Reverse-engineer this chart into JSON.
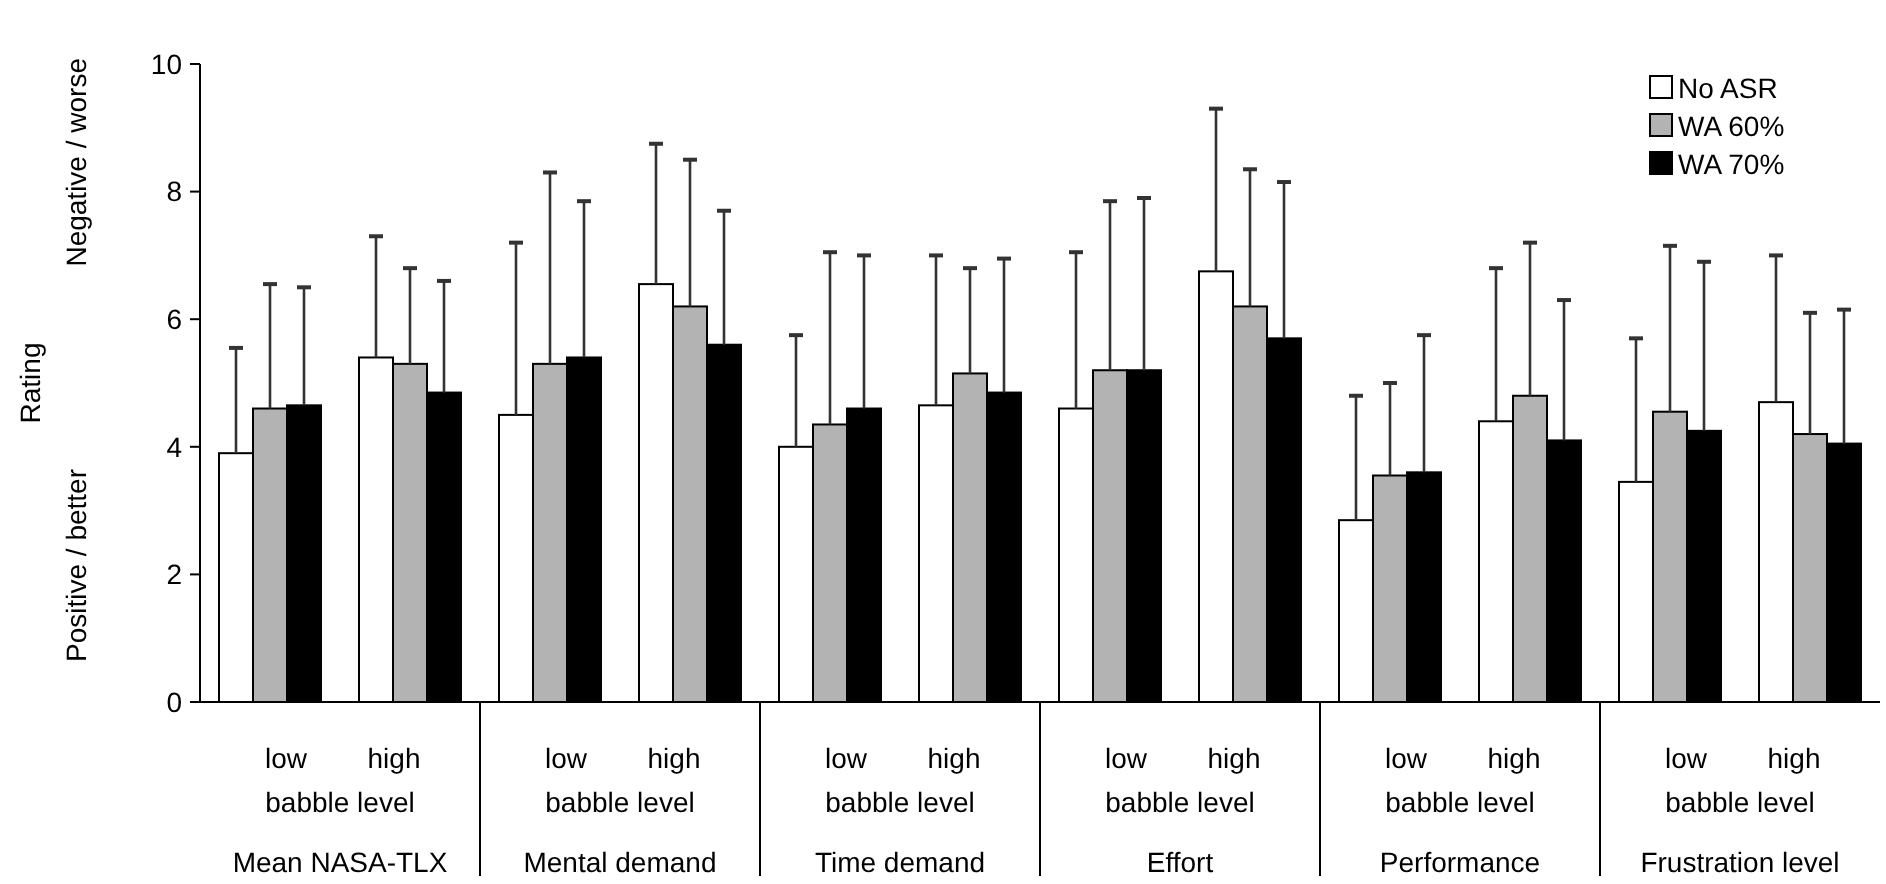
{
  "chart_data": {
    "type": "bar",
    "ylabel": "Rating",
    "categories": [
      "low",
      "high",
      "low",
      "high",
      "low",
      "high",
      "low",
      "high",
      "low",
      "high",
      "low",
      "high"
    ],
    "series": [
      {
        "name": "No ASR",
        "color": "#ffffff",
        "values": [
          3.9,
          5.4,
          4.5,
          6.55,
          4.0,
          4.65,
          4.6,
          6.75,
          2.85,
          4.4,
          3.45,
          4.7
        ],
        "errors": [
          [
            3.9,
            5.55
          ],
          [
            5.4,
            7.3
          ],
          [
            4.5,
            7.2
          ],
          [
            6.55,
            8.75
          ],
          [
            4.0,
            5.75
          ],
          [
            4.65,
            7.0
          ],
          [
            4.6,
            7.05
          ],
          [
            6.75,
            9.3
          ],
          [
            2.85,
            4.8
          ],
          [
            4.4,
            6.8
          ],
          [
            3.45,
            5.7
          ],
          [
            4.7,
            7.0
          ]
        ]
      },
      {
        "name": "WA 60%",
        "color": "#b3b3b3",
        "values": [
          4.6,
          5.3,
          5.3,
          6.2,
          4.35,
          5.15,
          5.2,
          6.2,
          3.55,
          4.8,
          4.55,
          4.2
        ],
        "errors": [
          [
            4.6,
            6.55
          ],
          [
            5.3,
            6.8
          ],
          [
            5.3,
            8.3
          ],
          [
            6.2,
            8.5
          ],
          [
            4.35,
            7.05
          ],
          [
            5.15,
            6.8
          ],
          [
            5.2,
            7.85
          ],
          [
            6.2,
            8.35
          ],
          [
            3.55,
            5.0
          ],
          [
            4.8,
            7.2
          ],
          [
            4.55,
            7.15
          ],
          [
            4.2,
            6.1
          ]
        ]
      },
      {
        "name": "WA 70%",
        "color": "#000000",
        "values": [
          4.65,
          4.85,
          5.4,
          5.6,
          4.6,
          4.85,
          5.2,
          5.7,
          3.6,
          4.1,
          4.25,
          4.05
        ],
        "errors": [
          [
            4.65,
            6.5
          ],
          [
            4.85,
            6.6
          ],
          [
            5.4,
            7.85
          ],
          [
            5.6,
            7.7
          ],
          [
            4.6,
            7.0
          ],
          [
            4.85,
            6.95
          ],
          [
            5.2,
            7.9
          ],
          [
            5.7,
            8.15
          ],
          [
            3.6,
            5.75
          ],
          [
            4.1,
            6.3
          ],
          [
            4.25,
            6.9
          ],
          [
            4.05,
            6.15
          ]
        ]
      }
    ],
    "ylim": [
      0,
      10
    ],
    "yticks": [
      0,
      2,
      4,
      6,
      8,
      10
    ],
    "grid": false,
    "legend": "top right",
    "annotations": [
      "Positive / better",
      "Negative / worse",
      "babble level",
      "Mean NASA-TLX",
      "babble level",
      "Mental demand",
      "babble level",
      "Time demand",
      "babble level",
      "Effort",
      "babble level",
      "Performance",
      "babble level",
      "Frustration level"
    ]
  }
}
